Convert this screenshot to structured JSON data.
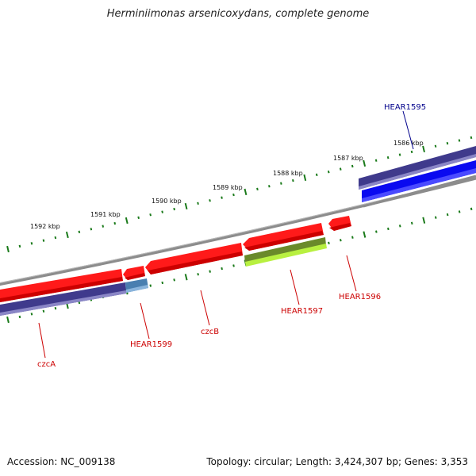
{
  "title": "Herminiimonas arsenicoxydans, complete genome",
  "footer": {
    "accession": "Accession: NC_009138",
    "stats": "Topology: circular; Length: 3,424,307 bp; Genes: 3,353"
  },
  "colors": {
    "backbone": "#8c8c8c",
    "tick": "#1a7a1a",
    "red_gene": "#ff1a1a",
    "navy_gene": "#3f3a8c",
    "blue_gene": "#0a0af0",
    "steel_gene": "#4a7fb0",
    "olive_gene": "#6a8a2a",
    "lime_gene": "#b8f040",
    "label_red": "#cc0000",
    "label_blue": "#00008b"
  },
  "kbp_labels": [
    "1586 kbp",
    "1587 kbp",
    "1588 kbp",
    "1589 kbp",
    "1590 kbp",
    "1591 kbp",
    "1592 kbp"
  ],
  "gene_labels": [
    "HEAR1595",
    "HEAR1596",
    "HEAR1597",
    "czcB",
    "HEAR1599",
    "czcA"
  ]
}
